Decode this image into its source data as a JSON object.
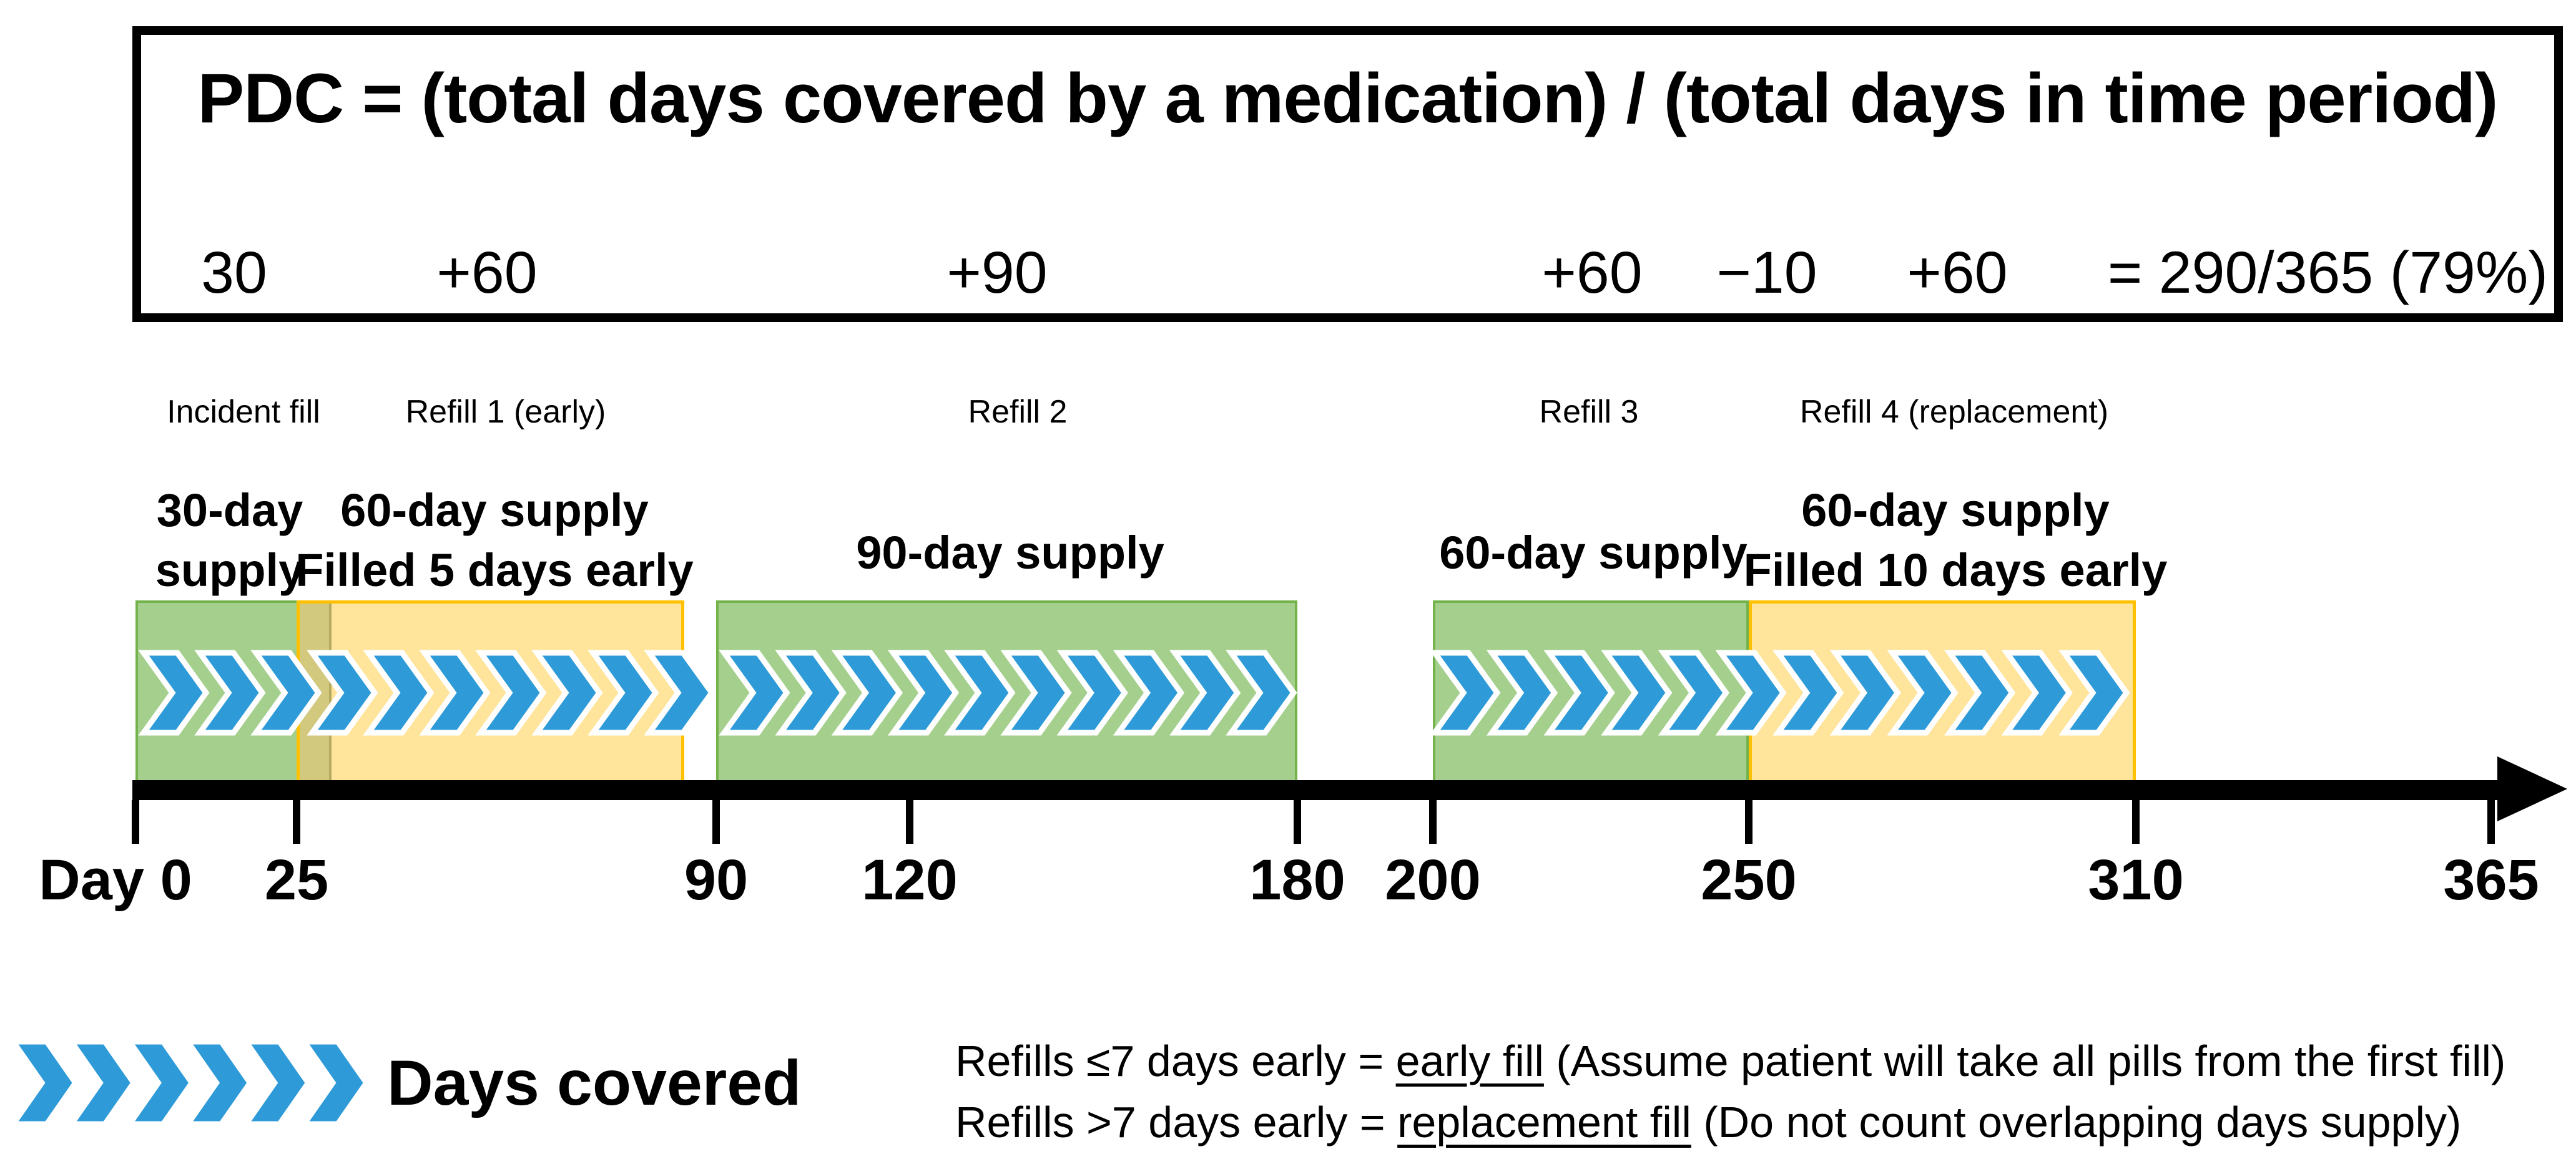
{
  "formula_box": {
    "title": "PDC = (total days covered by a medication) / (total days in time period)",
    "terms": [
      {
        "text": "30"
      },
      {
        "text": "+60"
      },
      {
        "text": "+90"
      },
      {
        "text": "+60"
      },
      {
        "text": "−10"
      },
      {
        "text": "+60"
      }
    ],
    "result": "= 290/365 (79%)"
  },
  "fill_labels": [
    {
      "text": "Incident fill"
    },
    {
      "text": "Refill 1 (early)"
    },
    {
      "text": "Refill 2"
    },
    {
      "text": "Refill 3"
    },
    {
      "text": "Refill 4 (replacement)"
    }
  ],
  "supply_labels": {
    "bar1_line1": "30-day",
    "bar1_line2": "supply",
    "bar2_line1": "60-day supply",
    "bar2_line2": "Filled 5 days early",
    "bar3": "90-day supply",
    "bar4": "60-day supply",
    "bar5_line1": "60-day supply",
    "bar5_line2": "Filled 10 days early"
  },
  "timeline": {
    "tick_labels": [
      "Day 0",
      "25",
      "90",
      "120",
      "180",
      "200",
      "250",
      "310",
      "365"
    ],
    "tick_days": [
      0,
      25,
      90,
      120,
      180,
      200,
      250,
      310,
      365
    ],
    "total_days": 365,
    "bars": [
      {
        "name": "incident-fill",
        "kind": "green-supply",
        "day_start": 0,
        "day_end": 30,
        "supply_days": 30
      },
      {
        "name": "refill-1-early",
        "kind": "yellow-early-fill",
        "day_start": 25,
        "day_end": 85,
        "supply_days": 60,
        "overlap_day_start": 25,
        "overlap_day_end": 30,
        "filled_days_early": 5
      },
      {
        "name": "refill-2",
        "kind": "green-supply",
        "day_start": 90,
        "day_end": 180,
        "supply_days": 90
      },
      {
        "name": "refill-3",
        "kind": "green-supply",
        "day_start": 200,
        "day_end": 250,
        "supply_days": 60
      },
      {
        "name": "refill-4-replacement",
        "kind": "yellow-replacement-fill",
        "day_start": 250,
        "day_end": 310,
        "supply_days": 60,
        "filled_days_early": 10
      }
    ]
  },
  "legend": {
    "label": "Days covered"
  },
  "notes": [
    {
      "pre": "Refills ≤7 days early = ",
      "underlined": "early fill",
      "post": " (Assume patient will take all pills from the first fill)"
    },
    {
      "pre": "Refills >7 days early = ",
      "underlined": "replacement fill",
      "post": " (Do not count overlapping days supply)"
    }
  ],
  "colors": {
    "supply_green": "#A5CF8D",
    "supply_green_border": "#74B24C",
    "supply_yellow": "#FFE49B",
    "supply_yellow_border": "#FFC000",
    "overlap_olive": "#D2C87E",
    "chevron_blue": "#2E9BD8"
  }
}
